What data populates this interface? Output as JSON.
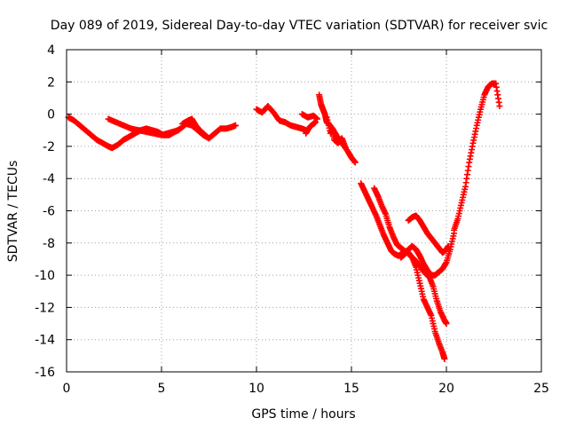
{
  "chart_data": {
    "type": "scatter",
    "title": "Day 089 of 2019, Sidereal Day-to-day VTEC variation (SDTVAR) for receiver svic",
    "xlabel": "GPS time / hours",
    "ylabel": "SDTVAR / TECUs",
    "xlim": [
      0,
      25
    ],
    "ylim": [
      -16,
      4
    ],
    "xticks": [
      0,
      5,
      10,
      15,
      20,
      25
    ],
    "yticks": [
      4,
      2,
      0,
      -2,
      -4,
      -6,
      -8,
      -10,
      -12,
      -14,
      -16
    ],
    "grid": true,
    "marker": "+",
    "series_color": "#ff0000",
    "series": [
      {
        "segments": [
          [
            [
              0.1,
              -0.2
            ],
            [
              0.4,
              -0.4
            ],
            [
              0.7,
              -0.7
            ],
            [
              1.0,
              -1.0
            ],
            [
              1.3,
              -1.3
            ],
            [
              1.6,
              -1.6
            ],
            [
              1.9,
              -1.8
            ],
            [
              2.2,
              -2.0
            ],
            [
              2.4,
              -2.1
            ],
            [
              2.7,
              -1.9
            ],
            [
              3.0,
              -1.6
            ],
            [
              3.3,
              -1.4
            ],
            [
              3.6,
              -1.2
            ],
            [
              3.9,
              -1.0
            ],
            [
              4.2,
              -0.9
            ],
            [
              4.5,
              -1.0
            ],
            [
              4.8,
              -1.1
            ],
            [
              5.1,
              -1.3
            ],
            [
              5.4,
              -1.3
            ],
            [
              5.7,
              -1.1
            ],
            [
              6.0,
              -0.9
            ],
            [
              6.3,
              -0.6
            ],
            [
              6.6,
              -0.7
            ],
            [
              6.9,
              -1.0
            ],
            [
              7.2,
              -1.3
            ],
            [
              7.5,
              -1.5
            ],
            [
              7.8,
              -1.2
            ],
            [
              8.1,
              -0.9
            ],
            [
              8.4,
              -0.9
            ],
            [
              8.7,
              -0.8
            ],
            [
              8.9,
              -0.7
            ]
          ],
          [
            [
              2.2,
              -0.3
            ],
            [
              2.6,
              -0.5
            ],
            [
              3.0,
              -0.7
            ],
            [
              3.4,
              -0.9
            ],
            [
              3.8,
              -1.0
            ],
            [
              4.2,
              -1.1
            ],
            [
              4.6,
              -1.2
            ],
            [
              5.0,
              -1.3
            ],
            [
              5.3,
              -1.2
            ],
            [
              5.6,
              -1.1
            ],
            [
              5.9,
              -1.0
            ]
          ],
          [
            [
              6.1,
              -0.6
            ],
            [
              6.4,
              -0.4
            ],
            [
              6.6,
              -0.3
            ],
            [
              6.8,
              -0.7
            ],
            [
              7.1,
              -1.1
            ],
            [
              7.4,
              -1.4
            ]
          ],
          [
            [
              10.0,
              0.3
            ],
            [
              10.3,
              0.1
            ],
            [
              10.6,
              0.5
            ],
            [
              10.9,
              0.1
            ],
            [
              11.2,
              -0.4
            ],
            [
              11.5,
              -0.5
            ],
            [
              11.8,
              -0.7
            ],
            [
              12.1,
              -0.8
            ],
            [
              12.4,
              -0.9
            ],
            [
              12.6,
              -1.0
            ]
          ],
          [
            [
              12.4,
              0.0
            ],
            [
              12.7,
              -0.2
            ],
            [
              13.0,
              -0.1
            ],
            [
              13.2,
              -0.3
            ]
          ],
          [
            [
              12.6,
              -1.2
            ],
            [
              12.8,
              -0.8
            ],
            [
              13.0,
              -0.6
            ],
            [
              13.1,
              -0.5
            ]
          ],
          [
            [
              13.3,
              1.2
            ],
            [
              13.4,
              0.6
            ],
            [
              13.5,
              0.3
            ],
            [
              13.6,
              0.0
            ],
            [
              13.7,
              -0.5
            ],
            [
              13.8,
              -0.6
            ],
            [
              14.0,
              -0.9
            ],
            [
              14.2,
              -1.3
            ],
            [
              14.5,
              -1.8
            ],
            [
              14.8,
              -2.3
            ],
            [
              15.0,
              -2.7
            ],
            [
              15.2,
              -3.0
            ]
          ],
          [
            [
              13.7,
              -0.2
            ],
            [
              13.9,
              -1.2
            ],
            [
              14.0,
              -0.9
            ],
            [
              14.1,
              -1.6
            ],
            [
              14.3,
              -1.8
            ],
            [
              14.5,
              -1.5
            ],
            [
              14.7,
              -2.1
            ]
          ],
          [
            [
              15.5,
              -4.3
            ],
            [
              15.7,
              -4.8
            ],
            [
              15.9,
              -5.3
            ],
            [
              16.1,
              -5.8
            ],
            [
              16.3,
              -6.3
            ],
            [
              16.5,
              -6.9
            ],
            [
              16.7,
              -7.5
            ],
            [
              16.9,
              -8.0
            ],
            [
              17.1,
              -8.5
            ],
            [
              17.3,
              -8.7
            ],
            [
              17.5,
              -8.8
            ],
            [
              17.7,
              -8.6
            ],
            [
              17.9,
              -8.5
            ],
            [
              18.1,
              -8.8
            ],
            [
              18.3,
              -9.0
            ],
            [
              18.5,
              -9.3
            ],
            [
              18.7,
              -9.6
            ],
            [
              18.9,
              -9.9
            ],
            [
              19.1,
              -10.1
            ],
            [
              19.3,
              -10.7
            ],
            [
              19.5,
              -11.6
            ],
            [
              19.7,
              -12.3
            ],
            [
              19.9,
              -12.8
            ],
            [
              20.0,
              -13.0
            ]
          ],
          [
            [
              16.2,
              -4.6
            ],
            [
              16.4,
              -5.1
            ],
            [
              16.6,
              -5.7
            ],
            [
              16.8,
              -6.2
            ],
            [
              17.0,
              -7.0
            ],
            [
              17.2,
              -7.6
            ],
            [
              17.4,
              -8.1
            ],
            [
              17.6,
              -8.3
            ],
            [
              17.8,
              -8.5
            ],
            [
              18.0,
              -8.6
            ],
            [
              18.2,
              -8.9
            ],
            [
              18.4,
              -9.5
            ],
            [
              18.6,
              -10.5
            ],
            [
              18.8,
              -11.5
            ],
            [
              19.0,
              -12.0
            ],
            [
              19.2,
              -12.5
            ],
            [
              19.4,
              -13.5
            ],
            [
              19.6,
              -14.2
            ],
            [
              19.8,
              -14.8
            ],
            [
              19.9,
              -15.2
            ]
          ],
          [
            [
              18.0,
              -6.6
            ],
            [
              18.2,
              -6.4
            ],
            [
              18.4,
              -6.3
            ],
            [
              18.6,
              -6.6
            ],
            [
              18.8,
              -7.0
            ],
            [
              19.0,
              -7.4
            ],
            [
              19.2,
              -7.7
            ],
            [
              19.4,
              -8.0
            ],
            [
              19.6,
              -8.3
            ],
            [
              19.8,
              -8.6
            ],
            [
              20.0,
              -8.4
            ],
            [
              20.1,
              -8.2
            ]
          ],
          [
            [
              17.6,
              -8.9
            ],
            [
              17.8,
              -8.7
            ],
            [
              18.0,
              -8.4
            ],
            [
              18.2,
              -8.2
            ],
            [
              18.4,
              -8.4
            ],
            [
              18.6,
              -8.8
            ],
            [
              18.8,
              -9.3
            ],
            [
              19.0,
              -9.7
            ],
            [
              19.2,
              -10.0
            ],
            [
              19.4,
              -10.0
            ],
            [
              19.6,
              -9.8
            ],
            [
              19.8,
              -9.6
            ],
            [
              20.0,
              -9.2
            ],
            [
              20.2,
              -8.4
            ],
            [
              20.4,
              -7.4
            ]
          ],
          [
            [
              20.4,
              -7.2
            ],
            [
              20.6,
              -6.5
            ],
            [
              20.8,
              -5.5
            ],
            [
              21.0,
              -4.5
            ],
            [
              21.2,
              -3.0
            ],
            [
              21.4,
              -1.8
            ],
            [
              21.6,
              -0.7
            ],
            [
              21.8,
              0.3
            ],
            [
              22.0,
              1.2
            ],
            [
              22.2,
              1.7
            ],
            [
              22.4,
              1.9
            ],
            [
              22.6,
              1.9
            ],
            [
              22.8,
              0.5
            ]
          ]
        ]
      }
    ]
  }
}
